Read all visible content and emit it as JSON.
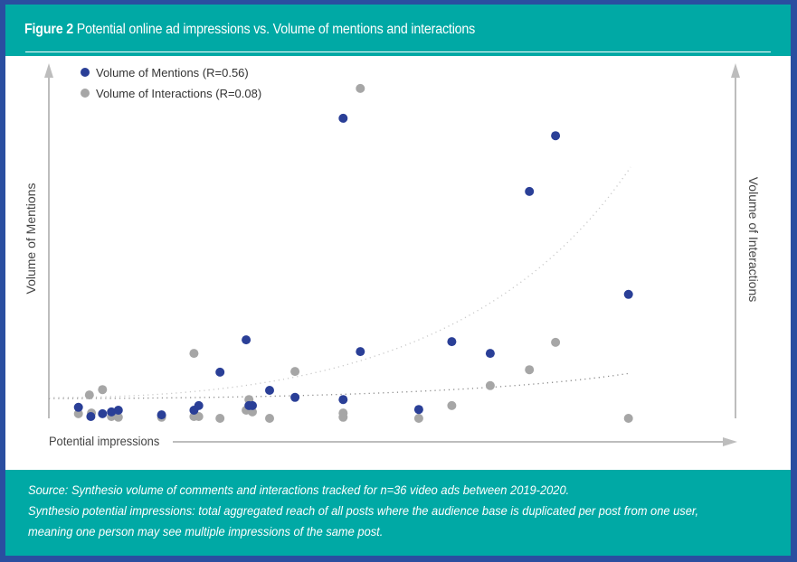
{
  "figure": {
    "label": "Figure 2",
    "title": "Potential online ad impressions vs. Volume of mentions and interactions"
  },
  "colors": {
    "border": "#2a4ea0",
    "header_bg": "#00a9a5",
    "mentions": "#2a3f97",
    "interactions": "#a6a6a6",
    "axis": "#bdbdbd"
  },
  "legend": {
    "mentions": "Volume of Mentions (R=0.56)",
    "interactions": "Volume of Interactions (R=0.08)"
  },
  "axes": {
    "x_label": "Potential impressions",
    "y_left_label": "Volume of Mentions",
    "y_right_label": "Volume of Interactions"
  },
  "footer": {
    "line1": "Source: Synthesio volume of comments and interactions tracked for n=36 video ads between 2019-2020.",
    "line2": "Synthesio potential impressions: total aggregated reach of all posts where the audience base is duplicated per post from one user,",
    "line3": "meaning one person may see multiple impressions of the same post."
  },
  "chart_data": {
    "type": "scatter",
    "title": "Potential online ad impressions vs. Volume of mentions and interactions",
    "xlabel": "Potential impressions",
    "ylabel": "Volume of Mentions",
    "y2label": "Volume of Interactions",
    "note": "No numeric ticks shown; values are relative positions (0-100) along each axis",
    "xlim": [
      0,
      100
    ],
    "ylim": [
      0,
      100
    ],
    "grid": false,
    "legend_position": "top-left",
    "series": [
      {
        "name": "Volume of Mentions (R=0.56)",
        "color": "#2a3f97",
        "trendline": "exponential",
        "points": [
          [
            4.3,
            3.1
          ],
          [
            6.1,
            0.5
          ],
          [
            7.8,
            1.3
          ],
          [
            9.1,
            1.8
          ],
          [
            10.1,
            2.3
          ],
          [
            16.4,
            1.0
          ],
          [
            21.1,
            2.3
          ],
          [
            21.8,
            3.6
          ],
          [
            24.9,
            13.0
          ],
          [
            28.7,
            22.1
          ],
          [
            29.1,
            3.6
          ],
          [
            29.6,
            3.6
          ],
          [
            32.1,
            7.9
          ],
          [
            35.8,
            5.9
          ],
          [
            42.8,
            84.5
          ],
          [
            42.8,
            5.3
          ],
          [
            45.3,
            18.8
          ],
          [
            53.8,
            2.5
          ],
          [
            58.6,
            21.6
          ],
          [
            64.2,
            18.3
          ],
          [
            69.9,
            63.9
          ],
          [
            73.7,
            79.6
          ],
          [
            84.3,
            34.9
          ]
        ]
      },
      {
        "name": "Volume of Interactions (R=0.08)",
        "color": "#a6a6a6",
        "trendline": "exponential",
        "points": [
          [
            4.3,
            1.3
          ],
          [
            5.9,
            6.6
          ],
          [
            6.2,
            1.5
          ],
          [
            7.8,
            8.1
          ],
          [
            9.1,
            0.5
          ],
          [
            10.1,
            0.3
          ],
          [
            16.4,
            0.3
          ],
          [
            21.1,
            18.3
          ],
          [
            21.1,
            0.5
          ],
          [
            21.8,
            0.5
          ],
          [
            24.9,
            0.0
          ],
          [
            28.7,
            2.3
          ],
          [
            29.1,
            5.3
          ],
          [
            29.6,
            1.8
          ],
          [
            32.1,
            0.0
          ],
          [
            35.8,
            13.2
          ],
          [
            42.8,
            1.5
          ],
          [
            42.8,
            0.3
          ],
          [
            45.3,
            92.9
          ],
          [
            53.8,
            0.0
          ],
          [
            58.6,
            3.6
          ],
          [
            64.2,
            9.2
          ],
          [
            69.9,
            13.7
          ],
          [
            73.7,
            21.4
          ],
          [
            84.3,
            0.0
          ]
        ]
      }
    ]
  }
}
